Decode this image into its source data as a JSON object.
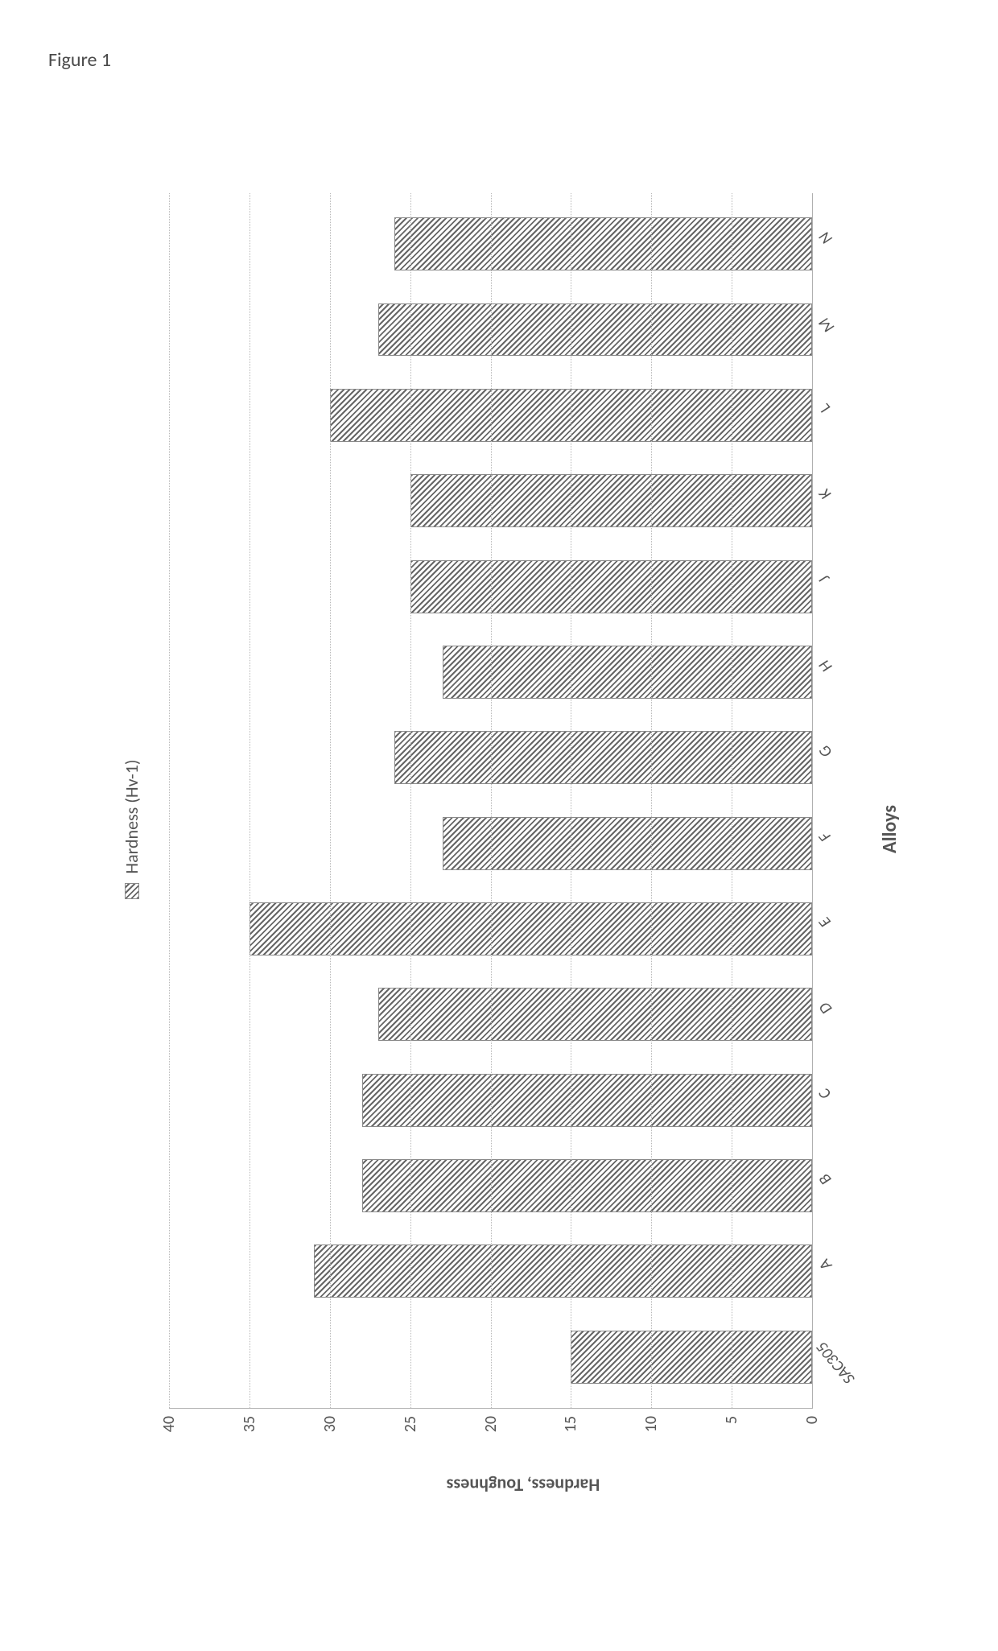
{
  "figure_label": "Figure 1",
  "chart": {
    "type": "bar",
    "legend_label": "Hardness (Hv-1)",
    "y_axis_title": "Hardness, Toughness",
    "x_axis_title": "Alloys",
    "ylim": [
      0,
      40
    ],
    "ytick_step": 5,
    "y_ticks": [
      0,
      5,
      10,
      15,
      20,
      25,
      30,
      35,
      40
    ],
    "categories": [
      "SAC305",
      "A",
      "B",
      "C",
      "D",
      "E",
      "F",
      "G",
      "H",
      "J",
      "K",
      "L",
      "M",
      "N"
    ],
    "values": [
      15,
      31,
      28,
      28,
      27,
      35,
      23,
      26,
      23,
      25,
      25,
      30,
      27,
      26
    ],
    "bar_fill_pattern": "diagonal-hatch-45",
    "bar_pattern_colors": [
      "#666666",
      "#ffffff"
    ],
    "bar_border_color": "#8a8a8a",
    "grid_color": "#b8b8b8",
    "grid_style": "dotted",
    "axis_color": "#b0b0b0",
    "background_color": "#ffffff",
    "text_color": "#555555",
    "tick_fontsize": 20,
    "axis_title_fontsize": 22,
    "legend_fontsize": 22,
    "x_label_font_style": "italic",
    "x_label_rotation_deg": -40,
    "bar_width_ratio": 0.62,
    "page_rotation_deg": -90
  }
}
